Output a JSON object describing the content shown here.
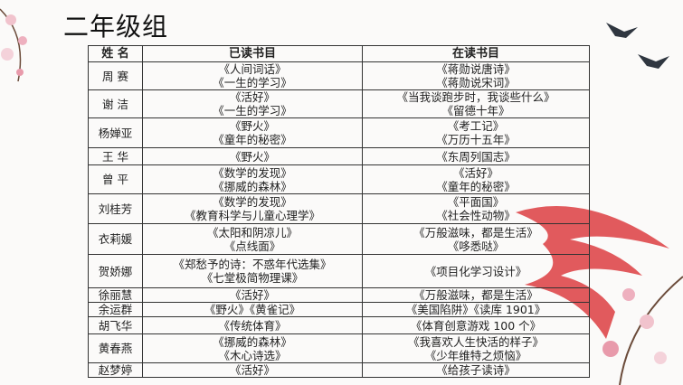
{
  "title": "二年级组",
  "headers": [
    "姓  名",
    "已读书目",
    "在读书目"
  ],
  "rows": [
    {
      "name": "周 赛",
      "read": [
        "《人间词话》",
        "《一生的学习》"
      ],
      "reading": [
        "《蒋勋说唐诗》",
        "《蒋勋说宋词》"
      ]
    },
    {
      "name": "谢 洁",
      "read": [
        "《活好》",
        "《一生的学习》"
      ],
      "reading": [
        "《当我谈跑步时，我谈些什么》",
        "《留德十年》"
      ]
    },
    {
      "name": "杨婵亚",
      "read": [
        "《野火》",
        "《童年的秘密》"
      ],
      "reading": [
        "《考工记》",
        "《万历十五年》"
      ]
    },
    {
      "name": "王 华",
      "read": [
        "《野火》"
      ],
      "reading": [
        "《东周列国志》"
      ]
    },
    {
      "name": "曾 平",
      "read": [
        "《数学的发现》",
        "《挪威的森林》"
      ],
      "reading": [
        "《活好》",
        "《童年的秘密》"
      ]
    },
    {
      "name": "刘桂芳",
      "read": [
        "《数学的发现》",
        "《教育科学与儿童心理学》"
      ],
      "reading": [
        "《平面国》",
        "《社会性动物》"
      ]
    },
    {
      "name": "衣莉媛",
      "read": [
        "《太阳和阴凉儿》",
        "《点线面》"
      ],
      "reading": [
        "《万般滋味，都是生活》",
        "《哆悉哒》"
      ]
    },
    {
      "name": "贺娇娜",
      "read": [
        "《郑愁予的诗：不惑年代选集》",
        "《七堂极简物理课》"
      ],
      "reading": [
        "《项目化学习设计》"
      ]
    },
    {
      "name": "徐丽慧",
      "read": [
        "《活好》"
      ],
      "reading": [
        "《万般滋味，都是生活》"
      ]
    },
    {
      "name": "余运群",
      "read": [
        "《野火》《黄雀记》"
      ],
      "reading": [
        "《美国陷阱》《读库 1901》"
      ]
    },
    {
      "name": "胡飞华",
      "read": [
        "《传统体育》"
      ],
      "reading": [
        "《体育创意游戏 100 个》"
      ]
    },
    {
      "name": "黄春燕",
      "read": [
        "《挪威的森林》",
        "《木心诗选》"
      ],
      "reading": [
        "《我喜欢人生快活的样子》",
        "《少年维特之烦恼》"
      ]
    },
    {
      "name": "赵梦婷",
      "read": [
        "《活好》"
      ],
      "reading": [
        "《给孩子读诗》"
      ]
    }
  ],
  "colors": {
    "logo": "#d9252a",
    "blossom": "#e8a4b4"
  }
}
